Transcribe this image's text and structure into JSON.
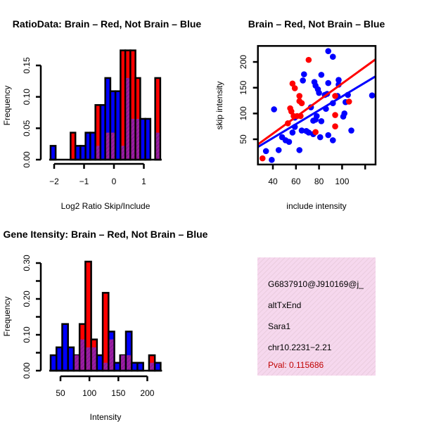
{
  "chart_data": [
    {
      "type": "bar",
      "title": "RatioData: Brain – Red, Not Brain – Blue",
      "xlabel": "Log2 Ratio Skip/Include",
      "ylabel": "Frequency",
      "xticks": [
        -2,
        -1,
        0,
        1
      ],
      "xtick_labels": [
        "−2",
        "−1",
        "0",
        "1"
      ],
      "yticks": [
        0,
        0.05,
        0.1,
        0.15
      ],
      "ytick_labels": [
        "0.00",
        "0.05",
        "0.10",
        "0.15"
      ],
      "xlim": [
        -2.12,
        1.55
      ],
      "ylim": [
        0,
        0.174
      ],
      "bin_edges": [
        -2.12,
        -1.95,
        -1.79,
        -1.62,
        -1.45,
        -1.29,
        -1.12,
        -0.95,
        -0.79,
        -0.62,
        -0.45,
        -0.29,
        -0.12,
        0.05,
        0.22,
        0.38,
        0.55,
        0.72,
        0.88,
        1.05,
        1.22,
        1.38,
        1.55
      ],
      "series": [
        {
          "name": "Not Brain",
          "color": "#0000ff",
          "values": [
            0.022,
            0,
            0,
            0,
            0,
            0.022,
            0.022,
            0.043,
            0.043,
            0.022,
            0.087,
            0.13,
            0.109,
            0.109,
            0.022,
            0.13,
            0.065,
            0.065,
            0.065,
            0.065,
            0,
            0.043
          ]
        },
        {
          "name": "Brain",
          "color": "#ff0000",
          "values": [
            0,
            0,
            0,
            0,
            0.043,
            0,
            0,
            0,
            0,
            0.087,
            0,
            0.043,
            0.043,
            0,
            0.174,
            0.174,
            0.174,
            0.13,
            0,
            0,
            0,
            0.13
          ]
        }
      ]
    },
    {
      "type": "scatter",
      "title": "Brain – Red, Not Brain – Blue",
      "xlabel": "include intensity",
      "ylabel": "skip intensity",
      "xticks": [
        40,
        60,
        80,
        100,
        120
      ],
      "xtick_labels": [
        "40",
        "60",
        "80",
        "100",
        ""
      ],
      "yticks": [
        50,
        100,
        150,
        200
      ],
      "ytick_labels": [
        "50",
        "100",
        "150",
        "200"
      ],
      "xlim": [
        27,
        129
      ],
      "ylim": [
        1,
        231
      ],
      "series": [
        {
          "name": "Not Brain",
          "color": "#0000ff",
          "points": [
            [
              88,
              221
            ],
            [
              92,
              210
            ],
            [
              67,
              176
            ],
            [
              66,
              164
            ],
            [
              82,
              175
            ],
            [
              76,
              161
            ],
            [
              88,
              159
            ],
            [
              77,
              154
            ],
            [
              79,
              147
            ],
            [
              97,
              165
            ],
            [
              97,
              156
            ],
            [
              80,
              140
            ],
            [
              85,
              136
            ],
            [
              87,
              138
            ],
            [
              96,
              134
            ],
            [
              105,
              136
            ],
            [
              126,
              135
            ],
            [
              92,
              120
            ],
            [
              103,
              122
            ],
            [
              86,
              109
            ],
            [
              73,
              112
            ],
            [
              41,
              108
            ],
            [
              78,
              95
            ],
            [
              75,
              86
            ],
            [
              82,
              85
            ],
            [
              77,
              88
            ],
            [
              102,
              100
            ],
            [
              101,
              94
            ],
            [
              59,
              92
            ],
            [
              59,
              74
            ],
            [
              57,
              63
            ],
            [
              48,
              54
            ],
            [
              51,
              48
            ],
            [
              54,
              45
            ],
            [
              65,
              67
            ],
            [
              69,
              66
            ],
            [
              71,
              63
            ],
            [
              75,
              60
            ],
            [
              81,
              54
            ],
            [
              88,
              58
            ],
            [
              92,
              48
            ],
            [
              108,
              67
            ],
            [
              34,
              27
            ],
            [
              45,
              29
            ],
            [
              63,
              29
            ],
            [
              39,
              10
            ]
          ],
          "fit": [
            [
              27,
              35
            ],
            [
              129,
              172
            ]
          ]
        },
        {
          "name": "Brain",
          "color": "#ff0000",
          "points": [
            [
              71,
              204
            ],
            [
              57,
              158
            ],
            [
              59,
              149
            ],
            [
              63,
              134
            ],
            [
              63,
              124
            ],
            [
              65,
              120
            ],
            [
              55,
              110
            ],
            [
              56,
              104
            ],
            [
              58,
              95
            ],
            [
              53,
              81
            ],
            [
              61,
              95
            ],
            [
              64,
              95
            ],
            [
              94,
              134
            ],
            [
              106,
              123
            ],
            [
              94,
              97
            ],
            [
              94,
              75
            ],
            [
              77,
              64
            ],
            [
              31,
              13
            ]
          ],
          "fit": [
            [
              27,
              40
            ],
            [
              129,
              205
            ]
          ]
        }
      ]
    },
    {
      "type": "bar",
      "title": "Gene Itensity: Brain – Red, Not Brain – Blue",
      "xlabel": "Intensity",
      "ylabel": "Frequency",
      "xticks": [
        50,
        100,
        150,
        200
      ],
      "xtick_labels": [
        "50",
        "100",
        "150",
        "200"
      ],
      "yticks": [
        0,
        0.05,
        0.1,
        0.15,
        0.2,
        0.25,
        0.3
      ],
      "ytick_labels": [
        "0.00",
        "",
        "0.10",
        "",
        "0.20",
        "",
        "0.30"
      ],
      "xlim": [
        33,
        223
      ],
      "ylim": [
        0,
        0.304
      ],
      "bin_edges": [
        33,
        43,
        53,
        63,
        73,
        83,
        93,
        103,
        113,
        123,
        133,
        143,
        153,
        163,
        173,
        183,
        193,
        203,
        213,
        223
      ],
      "series": [
        {
          "name": "Not Brain",
          "color": "#0000ff",
          "values": [
            0.043,
            0.065,
            0.13,
            0.065,
            0.043,
            0.087,
            0.065,
            0.065,
            0.043,
            0.022,
            0.109,
            0.022,
            0.043,
            0.109,
            0.022,
            0.022,
            0,
            0.022,
            0.022
          ]
        },
        {
          "name": "Brain",
          "color": "#ff0000",
          "values": [
            0,
            0,
            0,
            0,
            0.043,
            0.13,
            0.304,
            0.087,
            0,
            0.217,
            0.087,
            0,
            0.043,
            0.043,
            0,
            0,
            0,
            0.043,
            0
          ]
        }
      ]
    }
  ],
  "info": {
    "lines": [
      "G6837910@J910169@j_",
      "altTxEnd",
      "Sara1",
      "chr10.2231−2.21"
    ],
    "pval": "Pval: 0.115686"
  }
}
